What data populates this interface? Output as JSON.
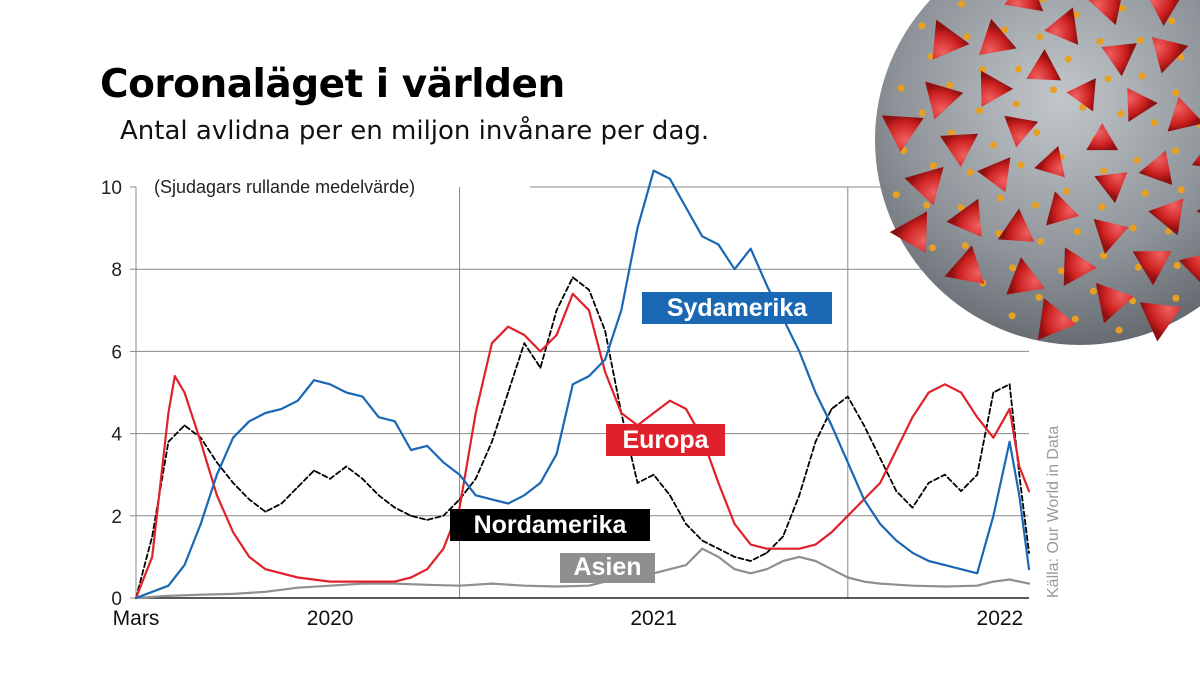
{
  "title": "Coronaläget i världen",
  "subtitle": "Antal avlidna per en miljon invånare per dag.",
  "note": "(Sjudagars rullande medelvärde)",
  "source": "Källa: Our World in Data",
  "colors": {
    "Sydamerika": "#1a67b4",
    "Europa": "#e0202a",
    "Nordamerika": "#000000",
    "Asien": "#8f8f8f",
    "grid": "#888888",
    "virus_body": "#8e9499",
    "virus_spike": "#d42a2a",
    "virus_dot": "#f2a020"
  },
  "chart_data": {
    "type": "line",
    "x_unit": "month index (0 = 2020-03)",
    "x_ticks": [
      {
        "x": 0,
        "label": "Mars"
      },
      {
        "x": 6,
        "label": "2020"
      },
      {
        "x": 16,
        "label": "2021"
      },
      {
        "x": 26.7,
        "label": "2022"
      }
    ],
    "year_lines": [
      10,
      22
    ],
    "ylim": [
      0,
      10
    ],
    "y_ticks": [
      0,
      2,
      4,
      6,
      8,
      10
    ],
    "xlim": [
      0,
      27.6
    ],
    "grid": true,
    "series": [
      {
        "name": "Sydamerika",
        "points": [
          [
            0,
            0
          ],
          [
            1,
            0.3
          ],
          [
            1.5,
            0.8
          ],
          [
            2,
            1.8
          ],
          [
            2.5,
            3
          ],
          [
            3,
            3.9
          ],
          [
            3.5,
            4.3
          ],
          [
            4,
            4.5
          ],
          [
            4.5,
            4.6
          ],
          [
            5,
            4.8
          ],
          [
            5.5,
            5.3
          ],
          [
            6,
            5.2
          ],
          [
            6.5,
            5.0
          ],
          [
            7,
            4.9
          ],
          [
            7.5,
            4.4
          ],
          [
            8,
            4.3
          ],
          [
            8.5,
            3.6
          ],
          [
            9,
            3.7
          ],
          [
            9.5,
            3.3
          ],
          [
            10,
            3.0
          ],
          [
            10.5,
            2.5
          ],
          [
            11,
            2.4
          ],
          [
            11.5,
            2.3
          ],
          [
            12,
            2.5
          ],
          [
            12.5,
            2.8
          ],
          [
            13,
            3.5
          ],
          [
            13.5,
            5.2
          ],
          [
            14,
            5.4
          ],
          [
            14.5,
            5.8
          ],
          [
            15,
            7.0
          ],
          [
            15.5,
            9.0
          ],
          [
            16,
            10.4
          ],
          [
            16.5,
            10.2
          ],
          [
            17,
            9.5
          ],
          [
            17.5,
            8.8
          ],
          [
            18,
            8.6
          ],
          [
            18.5,
            8.0
          ],
          [
            19,
            8.5
          ],
          [
            19.5,
            7.6
          ],
          [
            20,
            6.8
          ],
          [
            20.5,
            6.0
          ],
          [
            21,
            5.0
          ],
          [
            21.5,
            4.2
          ],
          [
            22,
            3.3
          ],
          [
            22.5,
            2.4
          ],
          [
            23,
            1.8
          ],
          [
            23.5,
            1.4
          ],
          [
            24,
            1.1
          ],
          [
            24.5,
            0.9
          ],
          [
            25,
            0.8
          ],
          [
            25.5,
            0.7
          ],
          [
            26,
            0.6
          ],
          [
            26.5,
            2.0
          ],
          [
            27,
            3.8
          ],
          [
            27.3,
            2.5
          ],
          [
            27.6,
            0.7
          ]
        ]
      },
      {
        "name": "Europa",
        "points": [
          [
            0,
            0
          ],
          [
            0.5,
            1.0
          ],
          [
            1,
            4.5
          ],
          [
            1.2,
            5.4
          ],
          [
            1.5,
            5.0
          ],
          [
            2,
            3.8
          ],
          [
            2.5,
            2.5
          ],
          [
            3,
            1.6
          ],
          [
            3.5,
            1.0
          ],
          [
            4,
            0.7
          ],
          [
            5,
            0.5
          ],
          [
            6,
            0.4
          ],
          [
            7,
            0.4
          ],
          [
            8,
            0.4
          ],
          [
            8.5,
            0.5
          ],
          [
            9,
            0.7
          ],
          [
            9.5,
            1.2
          ],
          [
            10,
            2.2
          ],
          [
            10.5,
            4.5
          ],
          [
            11,
            6.2
          ],
          [
            11.5,
            6.6
          ],
          [
            12,
            6.4
          ],
          [
            12.5,
            6.0
          ],
          [
            13,
            6.4
          ],
          [
            13.5,
            7.4
          ],
          [
            14,
            7.0
          ],
          [
            14.5,
            5.5
          ],
          [
            15,
            4.5
          ],
          [
            15.5,
            4.2
          ],
          [
            16,
            4.5
          ],
          [
            16.5,
            4.8
          ],
          [
            17,
            4.6
          ],
          [
            17.5,
            3.9
          ],
          [
            18,
            2.8
          ],
          [
            18.5,
            1.8
          ],
          [
            19,
            1.3
          ],
          [
            19.5,
            1.2
          ],
          [
            20,
            1.2
          ],
          [
            20.5,
            1.2
          ],
          [
            21,
            1.3
          ],
          [
            21.5,
            1.6
          ],
          [
            22,
            2.0
          ],
          [
            22.5,
            2.4
          ],
          [
            23,
            2.8
          ],
          [
            23.5,
            3.6
          ],
          [
            24,
            4.4
          ],
          [
            24.5,
            5.0
          ],
          [
            25,
            5.2
          ],
          [
            25.5,
            5.0
          ],
          [
            26,
            4.4
          ],
          [
            26.5,
            3.9
          ],
          [
            27,
            4.6
          ],
          [
            27.3,
            3.2
          ],
          [
            27.6,
            2.6
          ]
        ]
      },
      {
        "name": "Nordamerika",
        "points": [
          [
            0,
            0
          ],
          [
            0.5,
            1.5
          ],
          [
            1,
            3.8
          ],
          [
            1.5,
            4.2
          ],
          [
            2,
            3.9
          ],
          [
            2.5,
            3.3
          ],
          [
            3,
            2.8
          ],
          [
            3.5,
            2.4
          ],
          [
            4,
            2.1
          ],
          [
            4.5,
            2.3
          ],
          [
            5,
            2.7
          ],
          [
            5.5,
            3.1
          ],
          [
            6,
            2.9
          ],
          [
            6.5,
            3.2
          ],
          [
            7,
            2.9
          ],
          [
            7.5,
            2.5
          ],
          [
            8,
            2.2
          ],
          [
            8.5,
            2.0
          ],
          [
            9,
            1.9
          ],
          [
            9.5,
            2.0
          ],
          [
            10,
            2.4
          ],
          [
            10.5,
            2.9
          ],
          [
            11,
            3.8
          ],
          [
            11.5,
            5.0
          ],
          [
            12,
            6.2
          ],
          [
            12.5,
            5.6
          ],
          [
            13,
            7.0
          ],
          [
            13.5,
            7.8
          ],
          [
            14,
            7.5
          ],
          [
            14.5,
            6.5
          ],
          [
            15,
            4.5
          ],
          [
            15.5,
            2.8
          ],
          [
            16,
            3.0
          ],
          [
            16.5,
            2.5
          ],
          [
            17,
            1.8
          ],
          [
            17.5,
            1.4
          ],
          [
            18,
            1.2
          ],
          [
            18.5,
            1.0
          ],
          [
            19,
            0.9
          ],
          [
            19.5,
            1.1
          ],
          [
            20,
            1.5
          ],
          [
            20.5,
            2.5
          ],
          [
            21,
            3.8
          ],
          [
            21.5,
            4.6
          ],
          [
            22,
            4.9
          ],
          [
            22.5,
            4.2
          ],
          [
            23,
            3.4
          ],
          [
            23.5,
            2.6
          ],
          [
            24,
            2.2
          ],
          [
            24.5,
            2.8
          ],
          [
            25,
            3.0
          ],
          [
            25.5,
            2.6
          ],
          [
            26,
            3.0
          ],
          [
            26.5,
            5.0
          ],
          [
            27,
            5.2
          ],
          [
            27.3,
            3.0
          ],
          [
            27.6,
            1.1
          ]
        ]
      },
      {
        "name": "Asien",
        "points": [
          [
            0,
            0
          ],
          [
            1,
            0.05
          ],
          [
            2,
            0.08
          ],
          [
            3,
            0.1
          ],
          [
            4,
            0.15
          ],
          [
            5,
            0.25
          ],
          [
            6,
            0.3
          ],
          [
            7,
            0.35
          ],
          [
            8,
            0.35
          ],
          [
            9,
            0.32
          ],
          [
            10,
            0.3
          ],
          [
            11,
            0.35
          ],
          [
            12,
            0.3
          ],
          [
            13,
            0.28
          ],
          [
            14,
            0.3
          ],
          [
            15,
            0.5
          ],
          [
            16,
            0.6
          ],
          [
            17,
            0.8
          ],
          [
            17.5,
            1.2
          ],
          [
            18,
            1.0
          ],
          [
            18.5,
            0.7
          ],
          [
            19,
            0.6
          ],
          [
            19.5,
            0.7
          ],
          [
            20,
            0.9
          ],
          [
            20.5,
            1.0
          ],
          [
            21,
            0.9
          ],
          [
            21.5,
            0.7
          ],
          [
            22,
            0.5
          ],
          [
            22.5,
            0.4
          ],
          [
            23,
            0.35
          ],
          [
            24,
            0.3
          ],
          [
            25,
            0.28
          ],
          [
            26,
            0.3
          ],
          [
            26.5,
            0.4
          ],
          [
            27,
            0.45
          ],
          [
            27.6,
            0.35
          ]
        ]
      }
    ],
    "series_labels": [
      {
        "series": "Sydamerika",
        "text": "Sydamerika",
        "box": "#1a67b4"
      },
      {
        "series": "Europa",
        "text": "Europa",
        "box": "#e0202a"
      },
      {
        "series": "Nordamerika",
        "text": "Nordamerika",
        "box": "#000000"
      },
      {
        "series": "Asien",
        "text": "Asien",
        "box": "#8f8f8f"
      }
    ]
  }
}
